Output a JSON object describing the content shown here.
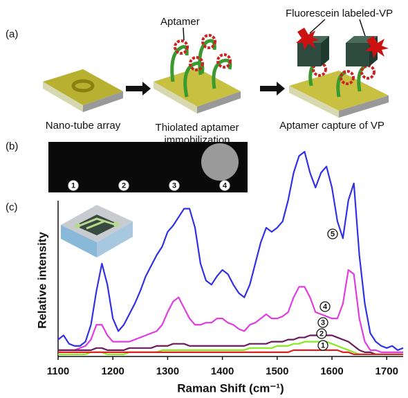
{
  "panel_a": {
    "label": "(a)",
    "aptamer": "Aptamer",
    "fluorescein": "Fluorescein labeled-VP",
    "steps": [
      [
        "Nano-tube array"
      ],
      [
        "Thiolated aptamer",
        "immobilization"
      ],
      [
        "Aptamer capture of VP"
      ]
    ]
  },
  "panel_b": {
    "label": "(b)",
    "spots": [
      "1",
      "2",
      "3",
      "4"
    ]
  },
  "chart_data": {
    "type": "line",
    "panel_label": "(c)",
    "x_label": "Raman Shift (cm⁻¹)",
    "y_label": "Relative intensity",
    "xlim": [
      1100,
      1730
    ],
    "ylim": [
      0,
      100
    ],
    "xticks": [
      1100,
      1200,
      1300,
      1400,
      1500,
      1600,
      1700
    ],
    "x": [
      1100,
      1110,
      1120,
      1130,
      1140,
      1150,
      1160,
      1170,
      1180,
      1190,
      1200,
      1210,
      1220,
      1230,
      1240,
      1250,
      1260,
      1270,
      1280,
      1290,
      1300,
      1310,
      1320,
      1330,
      1340,
      1350,
      1360,
      1370,
      1380,
      1390,
      1400,
      1410,
      1420,
      1430,
      1440,
      1450,
      1460,
      1470,
      1480,
      1490,
      1500,
      1510,
      1520,
      1530,
      1540,
      1550,
      1560,
      1570,
      1580,
      1590,
      1600,
      1610,
      1620,
      1630,
      1640,
      1650,
      1660,
      1670,
      1680,
      1690,
      1700,
      1710,
      1720,
      1730
    ],
    "series": [
      {
        "name": "5",
        "color": "#3030e8",
        "values": [
          8,
          10,
          6,
          5,
          5,
          7,
          15,
          31,
          44,
          34,
          18,
          12,
          15,
          20,
          25,
          31,
          38,
          43,
          48,
          52,
          59,
          62,
          66,
          70,
          70,
          61,
          44,
          36,
          34,
          38,
          41,
          39,
          34,
          30,
          28,
          34,
          44,
          54,
          61,
          59,
          61,
          64,
          74,
          87,
          95,
          97,
          87,
          80,
          87,
          90,
          80,
          64,
          56,
          74,
          82,
          48,
          25,
          11,
          7,
          5,
          4,
          5,
          3,
          4
        ]
      },
      {
        "name": "4",
        "color": "#e03ce0",
        "values": [
          3,
          3,
          3,
          3,
          4,
          5,
          8,
          15,
          15,
          10,
          7,
          7,
          7,
          7,
          8,
          9,
          10,
          11,
          12,
          15,
          21,
          26,
          28,
          23,
          18,
          15,
          15,
          16,
          16,
          18,
          18,
          16,
          15,
          13,
          12,
          15,
          16,
          18,
          20,
          18,
          18,
          19,
          21,
          28,
          33,
          33,
          28,
          21,
          20,
          19,
          18,
          18,
          25,
          41,
          39,
          18,
          7,
          3,
          3,
          2,
          2,
          2,
          2,
          2
        ]
      },
      {
        "name": "3",
        "color": "#6a1a5a",
        "values": [
          3,
          3,
          3,
          3,
          3,
          3,
          3,
          4,
          4,
          3,
          3,
          3,
          3,
          4,
          4,
          4,
          4,
          4,
          5,
          5,
          5,
          6,
          6,
          6,
          5,
          5,
          5,
          5,
          5,
          5,
          5,
          5,
          5,
          5,
          5,
          6,
          6,
          6,
          6,
          7,
          7,
          7,
          8,
          8,
          9,
          9,
          10,
          10,
          10,
          10,
          10,
          9,
          8,
          7,
          5,
          3,
          2,
          2,
          1,
          1,
          1,
          1,
          1,
          1
        ]
      },
      {
        "name": "2",
        "color": "#88e820",
        "values": [
          1,
          1,
          1,
          1,
          1,
          1,
          2,
          2,
          2,
          1,
          1,
          1,
          1,
          2,
          2,
          2,
          2,
          2,
          2,
          3,
          3,
          3,
          3,
          3,
          3,
          3,
          3,
          3,
          3,
          3,
          3,
          3,
          3,
          3,
          3,
          4,
          4,
          4,
          4,
          4,
          5,
          5,
          5,
          6,
          6,
          7,
          7,
          7,
          7,
          7,
          6,
          5,
          4,
          3,
          2,
          1,
          1,
          1,
          1,
          1,
          1,
          1,
          1,
          1
        ]
      },
      {
        "name": "1",
        "color": "#dd2020",
        "values": [
          2,
          2,
          2,
          2,
          2,
          2,
          2,
          2,
          2,
          2,
          2,
          2,
          2,
          2,
          2,
          2,
          2,
          2,
          2,
          2,
          2,
          2,
          2,
          2,
          2,
          2,
          2,
          2,
          2,
          2,
          2,
          2,
          2,
          2,
          2,
          2,
          2,
          2,
          2,
          2,
          2,
          2,
          2,
          3,
          3,
          3,
          3,
          3,
          3,
          3,
          3,
          3,
          2,
          2,
          1,
          1,
          1,
          1,
          1,
          1,
          1,
          1,
          1,
          1
        ]
      }
    ]
  }
}
